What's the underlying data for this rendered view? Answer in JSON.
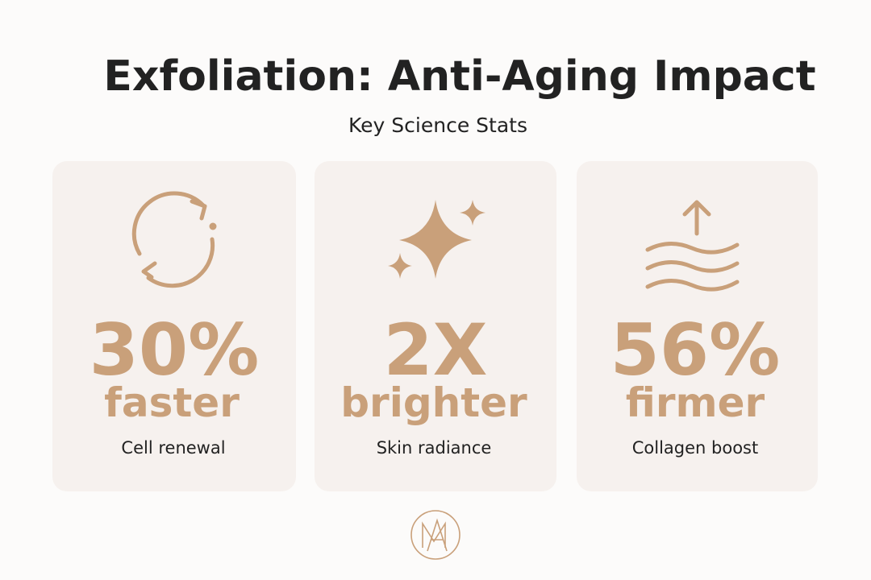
{
  "header": {
    "title": "Exfoliation: Anti-Aging Impact",
    "subtitle": "Key Science Stats"
  },
  "cards": [
    {
      "stat": "30%",
      "descriptor": "faster",
      "label": "Cell renewal"
    },
    {
      "stat": "2X",
      "descriptor": "brighter",
      "label": "Skin radiance"
    },
    {
      "stat": "56%",
      "descriptor": "firmer",
      "label": "Collagen boost"
    }
  ]
}
